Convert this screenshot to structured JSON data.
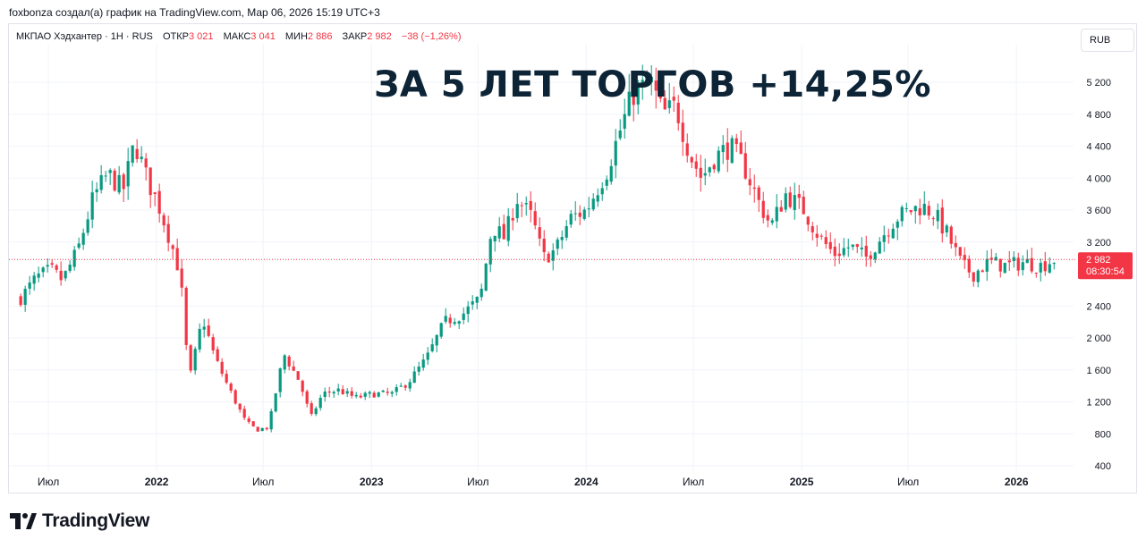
{
  "header": {
    "attribution": "foxbonza создал(а) график на TradingView.com, Мар 06, 2026 15:19 UTC+3"
  },
  "legend": {
    "symbol": "МКПАО Хэдхантер · 1H · RUS",
    "open_label": "ОТКР",
    "open_value": "3 021",
    "high_label": "МАКС",
    "high_value": "3 041",
    "low_label": "МИН",
    "low_value": "2 886",
    "close_label": "ЗАКР",
    "close_value": "2 982",
    "change": "−38 (−1,26%)"
  },
  "currency": "RUB",
  "overlay_title": "ЗА 5 ЛЕТ ТОРГОВ +14,25%",
  "price_marker": {
    "price": "2 982",
    "countdown": "08:30:54"
  },
  "footer": {
    "brand": "TradingView"
  },
  "colors": {
    "up": "#089981",
    "down": "#f23645",
    "grid": "#f0f3fa",
    "title": "#0d2437"
  },
  "chart_data": {
    "type": "candlestick",
    "ylim": [
      400,
      5500
    ],
    "y_ticks": [
      400,
      800,
      1200,
      1600,
      2000,
      2400,
      3200,
      3600,
      4000,
      4400,
      4800,
      5200
    ],
    "y_tick_labels": [
      "400",
      "800",
      "1 200",
      "1 600",
      "2 000",
      "2 400",
      "3 200",
      "3 600",
      "4 000",
      "4 400",
      "4 800",
      "5 200"
    ],
    "x_ticks": [
      "Июл",
      "2022",
      "Июл",
      "2023",
      "Июл",
      "2024",
      "Июл",
      "2025",
      "Июл",
      "2026"
    ],
    "last_price": 2982,
    "close_path": [
      {
        "date": "2021-05-15",
        "close": 2500
      },
      {
        "date": "2021-06-10",
        "close": 2750
      },
      {
        "date": "2021-07-05",
        "close": 2850
      },
      {
        "date": "2021-07-25",
        "close": 2720
      },
      {
        "date": "2021-08-20",
        "close": 3100
      },
      {
        "date": "2021-09-15",
        "close": 3750
      },
      {
        "date": "2021-10-10",
        "close": 4050
      },
      {
        "date": "2021-11-05",
        "close": 3850
      },
      {
        "date": "2021-11-25",
        "close": 4450
      },
      {
        "date": "2021-12-15",
        "close": 4000
      },
      {
        "date": "2022-01-05",
        "close": 3650
      },
      {
        "date": "2022-01-25",
        "close": 3200
      },
      {
        "date": "2022-02-10",
        "close": 2800
      },
      {
        "date": "2022-02-25",
        "close": 1450
      },
      {
        "date": "2022-03-20",
        "close": 2250
      },
      {
        "date": "2022-04-10",
        "close": 1750
      },
      {
        "date": "2022-05-05",
        "close": 1350
      },
      {
        "date": "2022-06-01",
        "close": 950
      },
      {
        "date": "2022-06-20",
        "close": 850
      },
      {
        "date": "2022-07-10",
        "close": 880
      },
      {
        "date": "2022-08-05",
        "close": 1800
      },
      {
        "date": "2022-09-01",
        "close": 1450
      },
      {
        "date": "2022-09-20",
        "close": 1000
      },
      {
        "date": "2022-10-10",
        "close": 1300
      },
      {
        "date": "2022-11-05",
        "close": 1350
      },
      {
        "date": "2022-12-05",
        "close": 1250
      },
      {
        "date": "2023-01-05",
        "close": 1300
      },
      {
        "date": "2023-02-05",
        "close": 1300
      },
      {
        "date": "2023-03-05",
        "close": 1450
      },
      {
        "date": "2023-04-05",
        "close": 1750
      },
      {
        "date": "2023-05-05",
        "close": 2200
      },
      {
        "date": "2023-06-05",
        "close": 2300
      },
      {
        "date": "2023-07-05",
        "close": 2500
      },
      {
        "date": "2023-07-25",
        "close": 3400
      },
      {
        "date": "2023-08-15",
        "close": 3250
      },
      {
        "date": "2023-09-05",
        "close": 3750
      },
      {
        "date": "2023-10-01",
        "close": 3500
      },
      {
        "date": "2023-10-20",
        "close": 3000
      },
      {
        "date": "2023-11-10",
        "close": 3100
      },
      {
        "date": "2023-12-05",
        "close": 3500
      },
      {
        "date": "2024-01-01",
        "close": 3600
      },
      {
        "date": "2024-02-05",
        "close": 4100
      },
      {
        "date": "2024-03-01",
        "close": 4650
      },
      {
        "date": "2024-03-20",
        "close": 5050
      },
      {
        "date": "2024-04-20",
        "close": 5200
      },
      {
        "date": "2024-05-10",
        "close": 4800
      },
      {
        "date": "2024-06-01",
        "close": 4900
      },
      {
        "date": "2024-06-25",
        "close": 4300
      },
      {
        "date": "2024-07-15",
        "close": 4000
      },
      {
        "date": "2024-08-05",
        "close": 4250
      },
      {
        "date": "2024-09-01",
        "close": 4400
      },
      {
        "date": "2024-09-25",
        "close": 4150
      },
      {
        "date": "2024-10-20",
        "close": 3700
      },
      {
        "date": "2024-11-10",
        "close": 3400
      },
      {
        "date": "2024-12-05",
        "close": 3800
      },
      {
        "date": "2025-01-05",
        "close": 3600
      },
      {
        "date": "2025-02-01",
        "close": 3250
      },
      {
        "date": "2025-02-25",
        "close": 3050
      },
      {
        "date": "2025-03-25",
        "close": 3150
      },
      {
        "date": "2025-04-20",
        "close": 3000
      },
      {
        "date": "2025-05-15",
        "close": 3250
      },
      {
        "date": "2025-06-10",
        "close": 3500
      },
      {
        "date": "2025-07-05",
        "close": 3600
      },
      {
        "date": "2025-07-25",
        "close": 3650
      },
      {
        "date": "2025-08-15",
        "close": 3550
      },
      {
        "date": "2025-09-05",
        "close": 3300
      },
      {
        "date": "2025-10-01",
        "close": 2900
      },
      {
        "date": "2025-10-20",
        "close": 2800
      },
      {
        "date": "2025-11-15",
        "close": 2950
      },
      {
        "date": "2025-12-15",
        "close": 2900
      },
      {
        "date": "2026-01-15",
        "close": 2950
      },
      {
        "date": "2026-02-10",
        "close": 2900
      },
      {
        "date": "2026-03-06",
        "close": 2982
      }
    ]
  }
}
